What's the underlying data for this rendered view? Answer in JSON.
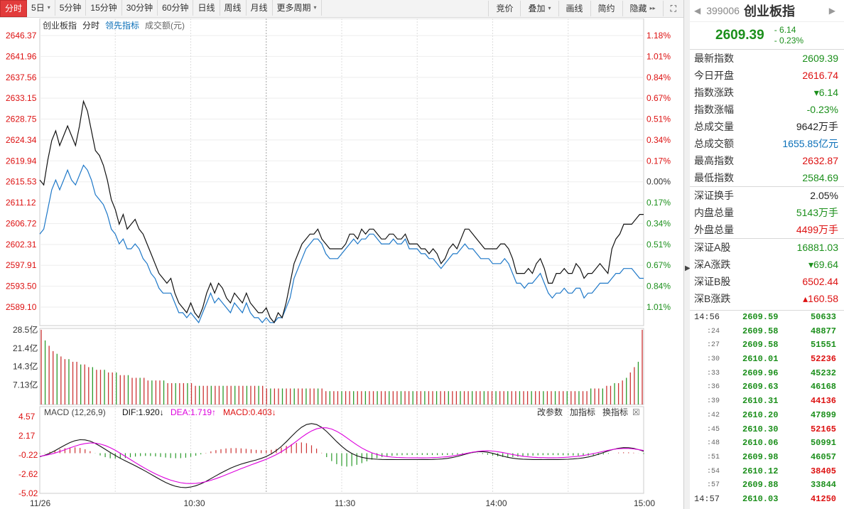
{
  "toolbar": {
    "tabs": [
      {
        "label": "分时",
        "active": true,
        "caret": false
      },
      {
        "label": "5日",
        "active": false,
        "caret": true
      },
      {
        "label": "5分钟",
        "active": false,
        "caret": false
      },
      {
        "label": "15分钟",
        "active": false,
        "caret": false
      },
      {
        "label": "30分钟",
        "active": false,
        "caret": false
      },
      {
        "label": "60分钟",
        "active": false,
        "caret": false
      },
      {
        "label": "日线",
        "active": false,
        "caret": false
      },
      {
        "label": "周线",
        "active": false,
        "caret": false
      },
      {
        "label": "月线",
        "active": false,
        "caret": false
      },
      {
        "label": "更多周期",
        "active": false,
        "caret": true
      }
    ],
    "right_buttons": [
      {
        "label": "竞价",
        "caret": false
      },
      {
        "label": "叠加",
        "caret": true
      },
      {
        "label": "画线",
        "caret": false
      },
      {
        "label": "简约",
        "caret": false
      },
      {
        "label": "隐藏",
        "caret": false,
        "suffix": "▸▸"
      },
      {
        "label": "⛶",
        "caret": false
      }
    ]
  },
  "chart_legend": {
    "name": "创业板指",
    "mode": "分时",
    "lead": "领先指标",
    "amount": "成交额(元)"
  },
  "chart_data": {
    "type": "line",
    "y_ticks": [
      "2646.37",
      "2641.96",
      "2637.56",
      "2633.15",
      "2628.75",
      "2624.34",
      "2619.94",
      "2615.53",
      "2611.12",
      "2606.72",
      "2602.31",
      "2597.91",
      "2593.50",
      "2589.10"
    ],
    "pct_ticks": [
      "1.18%",
      "1.01%",
      "0.84%",
      "0.67%",
      "0.51%",
      "0.34%",
      "0.17%",
      "0.00%",
      "0.17%",
      "0.34%",
      "0.51%",
      "0.67%",
      "0.84%",
      "1.01%"
    ],
    "pct_colors": [
      "#d11",
      "#d11",
      "#d11",
      "#d11",
      "#d11",
      "#d11",
      "#d11",
      "#333",
      "#1b8f1b",
      "#1b8f1b",
      "#1b8f1b",
      "#1b8f1b",
      "#1b8f1b",
      "#1b8f1b"
    ],
    "ylim": [
      2586.9,
      2646.37
    ],
    "prev_close": 2615.53,
    "x_labels": [
      "11/26",
      "10:30",
      "11:30",
      "14:00",
      "15:00"
    ],
    "price_series": [
      2617,
      2616,
      2621,
      2625,
      2627,
      2624,
      2626,
      2628,
      2626,
      2624,
      2628,
      2633,
      2631,
      2627,
      2623,
      2622,
      2620,
      2617,
      2613,
      2611,
      2608,
      2610,
      2607,
      2608,
      2609,
      2607,
      2606,
      2604,
      2602,
      2600,
      2598,
      2597,
      2596,
      2597,
      2594,
      2592,
      2591,
      2590,
      2592,
      2590,
      2589,
      2591,
      2594,
      2596,
      2594,
      2596,
      2595,
      2593,
      2592,
      2594,
      2593,
      2592,
      2594,
      2592,
      2591,
      2590,
      2590,
      2591,
      2589,
      2588,
      2590,
      2589,
      2592,
      2596,
      2600,
      2602,
      2604,
      2605,
      2606,
      2606,
      2607,
      2605,
      2604,
      2603,
      2603,
      2603,
      2603,
      2604,
      2606,
      2606,
      2605,
      2607,
      2606,
      2607,
      2607,
      2606,
      2605,
      2605,
      2606,
      2606,
      2605,
      2605,
      2606,
      2604,
      2604,
      2604,
      2603,
      2603,
      2602,
      2603,
      2602,
      2600,
      2601,
      2603,
      2604,
      2603,
      2605,
      2607,
      2607,
      2606,
      2605,
      2604,
      2603,
      2603,
      2603,
      2603,
      2604,
      2604,
      2603,
      2601,
      2598,
      2598,
      2598,
      2599,
      2598,
      2600,
      2601,
      2599,
      2596,
      2596,
      2598,
      2598,
      2599,
      2598,
      2598,
      2600,
      2599,
      2597,
      2598,
      2598,
      2599,
      2600,
      2599,
      2598,
      2603,
      2605,
      2606,
      2608,
      2608,
      2608,
      2609,
      2610,
      2610
    ],
    "lead_series": [
      2606,
      2607,
      2611,
      2615,
      2617,
      2615,
      2617,
      2619,
      2617,
      2616,
      2618,
      2620,
      2619,
      2617,
      2614,
      2613,
      2612,
      2610,
      2607,
      2606,
      2604,
      2605,
      2603,
      2603,
      2604,
      2603,
      2601,
      2600,
      2598,
      2597,
      2595,
      2594,
      2594,
      2594,
      2592,
      2590,
      2590,
      2589,
      2590,
      2589,
      2588,
      2590,
      2592,
      2594,
      2592,
      2593,
      2592,
      2591,
      2590,
      2592,
      2591,
      2590,
      2592,
      2590,
      2589,
      2589,
      2588,
      2589,
      2588,
      2588,
      2589,
      2589,
      2591,
      2593,
      2597,
      2599,
      2601,
      2603,
      2604,
      2605,
      2605,
      2604,
      2602,
      2601,
      2601,
      2601,
      2602,
      2603,
      2604,
      2605,
      2604,
      2605,
      2605,
      2606,
      2606,
      2605,
      2604,
      2604,
      2604,
      2605,
      2604,
      2604,
      2605,
      2603,
      2603,
      2603,
      2602,
      2602,
      2601,
      2601,
      2600,
      2599,
      2600,
      2601,
      2602,
      2602,
      2603,
      2604,
      2603,
      2603,
      2602,
      2601,
      2601,
      2601,
      2600,
      2600,
      2600,
      2601,
      2600,
      2598,
      2596,
      2596,
      2595,
      2596,
      2596,
      2597,
      2598,
      2596,
      2594,
      2593,
      2594,
      2594,
      2595,
      2594,
      2594,
      2595,
      2595,
      2593,
      2594,
      2594,
      2595,
      2596,
      2596,
      2596,
      2597,
      2598,
      2598,
      2599,
      2599,
      2599,
      2598,
      2597,
      2597
    ],
    "volume_ticks": [
      "28.5亿",
      "21.4亿",
      "14.3亿",
      "7.13亿"
    ],
    "volume_max": 28.5,
    "volumes": [
      28,
      24,
      22,
      20,
      19,
      18,
      17,
      17,
      16,
      16,
      15,
      15,
      14,
      14,
      13,
      13,
      13,
      12,
      12,
      12,
      11,
      11,
      11,
      10,
      10,
      10,
      10,
      9,
      9,
      9,
      9,
      9,
      8,
      8,
      8,
      8,
      8,
      8,
      8,
      7,
      7,
      7,
      7,
      7,
      7,
      7,
      7,
      7,
      7,
      7,
      7,
      7,
      7,
      7,
      7,
      7,
      7,
      6,
      6,
      6,
      6,
      6,
      6,
      6,
      6,
      6,
      6,
      6,
      6,
      6,
      6,
      6,
      5,
      5,
      5,
      5,
      5,
      5,
      5,
      5,
      5,
      5,
      5,
      5,
      5,
      5,
      5,
      5,
      5,
      5,
      5,
      5,
      5,
      5,
      5,
      5,
      5,
      5,
      5,
      5,
      5,
      5,
      5,
      5,
      5,
      5,
      5,
      5,
      5,
      5,
      5,
      5,
      5,
      5,
      5,
      5,
      5,
      5,
      5,
      5,
      5,
      5,
      5,
      5,
      5,
      5,
      5,
      5,
      5,
      5,
      5,
      5,
      5,
      5,
      5,
      5,
      5,
      5,
      5,
      6,
      6,
      6,
      6,
      7,
      7,
      8,
      8,
      9,
      10,
      12,
      14,
      16,
      28
    ],
    "macd_ticks": [
      "4.57",
      "2.17",
      "-0.22",
      "-2.62",
      "-5.02"
    ],
    "macd_ylim": [
      -5.02,
      4.57
    ]
  },
  "macd_header": {
    "title": "MACD (12,26,9)",
    "dif": "DIF:1.920↓",
    "dea": "DEA:1.719↑",
    "macd": "MACD:0.403↓",
    "buttons": [
      "改参数",
      "加指标",
      "换指标"
    ]
  },
  "panel": {
    "code": "399006",
    "name": "创业板指",
    "price": "2609.39",
    "change": "- 6.14",
    "change_pct": "- 0.23%",
    "stats_a": [
      {
        "label": "最新指数",
        "value": "2609.39",
        "color": "green"
      },
      {
        "label": "今日开盘",
        "value": "2616.74",
        "color": "red"
      },
      {
        "label": "指数涨跌",
        "value": "▾6.14",
        "color": "green"
      },
      {
        "label": "指数涨幅",
        "value": "-0.23%",
        "color": "green"
      },
      {
        "label": "总成交量",
        "value": "9642万手",
        "color": "black"
      },
      {
        "label": "总成交额",
        "value": "1655.85亿元",
        "color": "blue"
      },
      {
        "label": "最高指数",
        "value": "2632.87",
        "color": "red"
      },
      {
        "label": "最低指数",
        "value": "2584.69",
        "color": "green"
      }
    ],
    "stats_b": [
      {
        "label": "深证换手",
        "value": "2.05%",
        "color": "black"
      },
      {
        "label": "内盘总量",
        "value": "5143万手",
        "color": "green"
      },
      {
        "label": "外盘总量",
        "value": "4499万手",
        "color": "red"
      }
    ],
    "stats_c": [
      {
        "label": "深证A股",
        "value": "16881.03",
        "color": "green"
      },
      {
        "label": "深A涨跌",
        "value": "▾69.64",
        "color": "green"
      },
      {
        "label": "深证B股",
        "value": "6502.44",
        "color": "red"
      },
      {
        "label": "深B涨跌",
        "value": "▴160.58",
        "color": "red"
      }
    ],
    "ticks": [
      {
        "time": "14:56",
        "price": "2609.59",
        "vol": "50633",
        "vcolor": "green",
        "main": true
      },
      {
        "time": ":24",
        "price": "2609.58",
        "vol": "48877",
        "vcolor": "green",
        "main": false
      },
      {
        "time": ":27",
        "price": "2609.58",
        "vol": "51551",
        "vcolor": "green",
        "main": false
      },
      {
        "time": ":30",
        "price": "2610.01",
        "vol": "52236",
        "vcolor": "red",
        "main": false
      },
      {
        "time": ":33",
        "price": "2609.96",
        "vol": "45232",
        "vcolor": "green",
        "main": false
      },
      {
        "time": ":36",
        "price": "2609.63",
        "vol": "46168",
        "vcolor": "green",
        "main": false
      },
      {
        "time": ":39",
        "price": "2610.31",
        "vol": "44136",
        "vcolor": "red",
        "main": false
      },
      {
        "time": ":42",
        "price": "2610.20",
        "vol": "47899",
        "vcolor": "green",
        "main": false
      },
      {
        "time": ":45",
        "price": "2610.30",
        "vol": "52165",
        "vcolor": "red",
        "main": false
      },
      {
        "time": ":48",
        "price": "2610.06",
        "vol": "50991",
        "vcolor": "green",
        "main": false
      },
      {
        "time": ":51",
        "price": "2609.98",
        "vol": "46057",
        "vcolor": "green",
        "main": false
      },
      {
        "time": ":54",
        "price": "2610.12",
        "vol": "38405",
        "vcolor": "red",
        "main": false
      },
      {
        "time": ":57",
        "price": "2609.88",
        "vol": "33844",
        "vcolor": "green",
        "main": false
      },
      {
        "time": "14:57",
        "price": "2610.03",
        "vol": "41250",
        "vcolor": "red",
        "main": true
      }
    ]
  }
}
